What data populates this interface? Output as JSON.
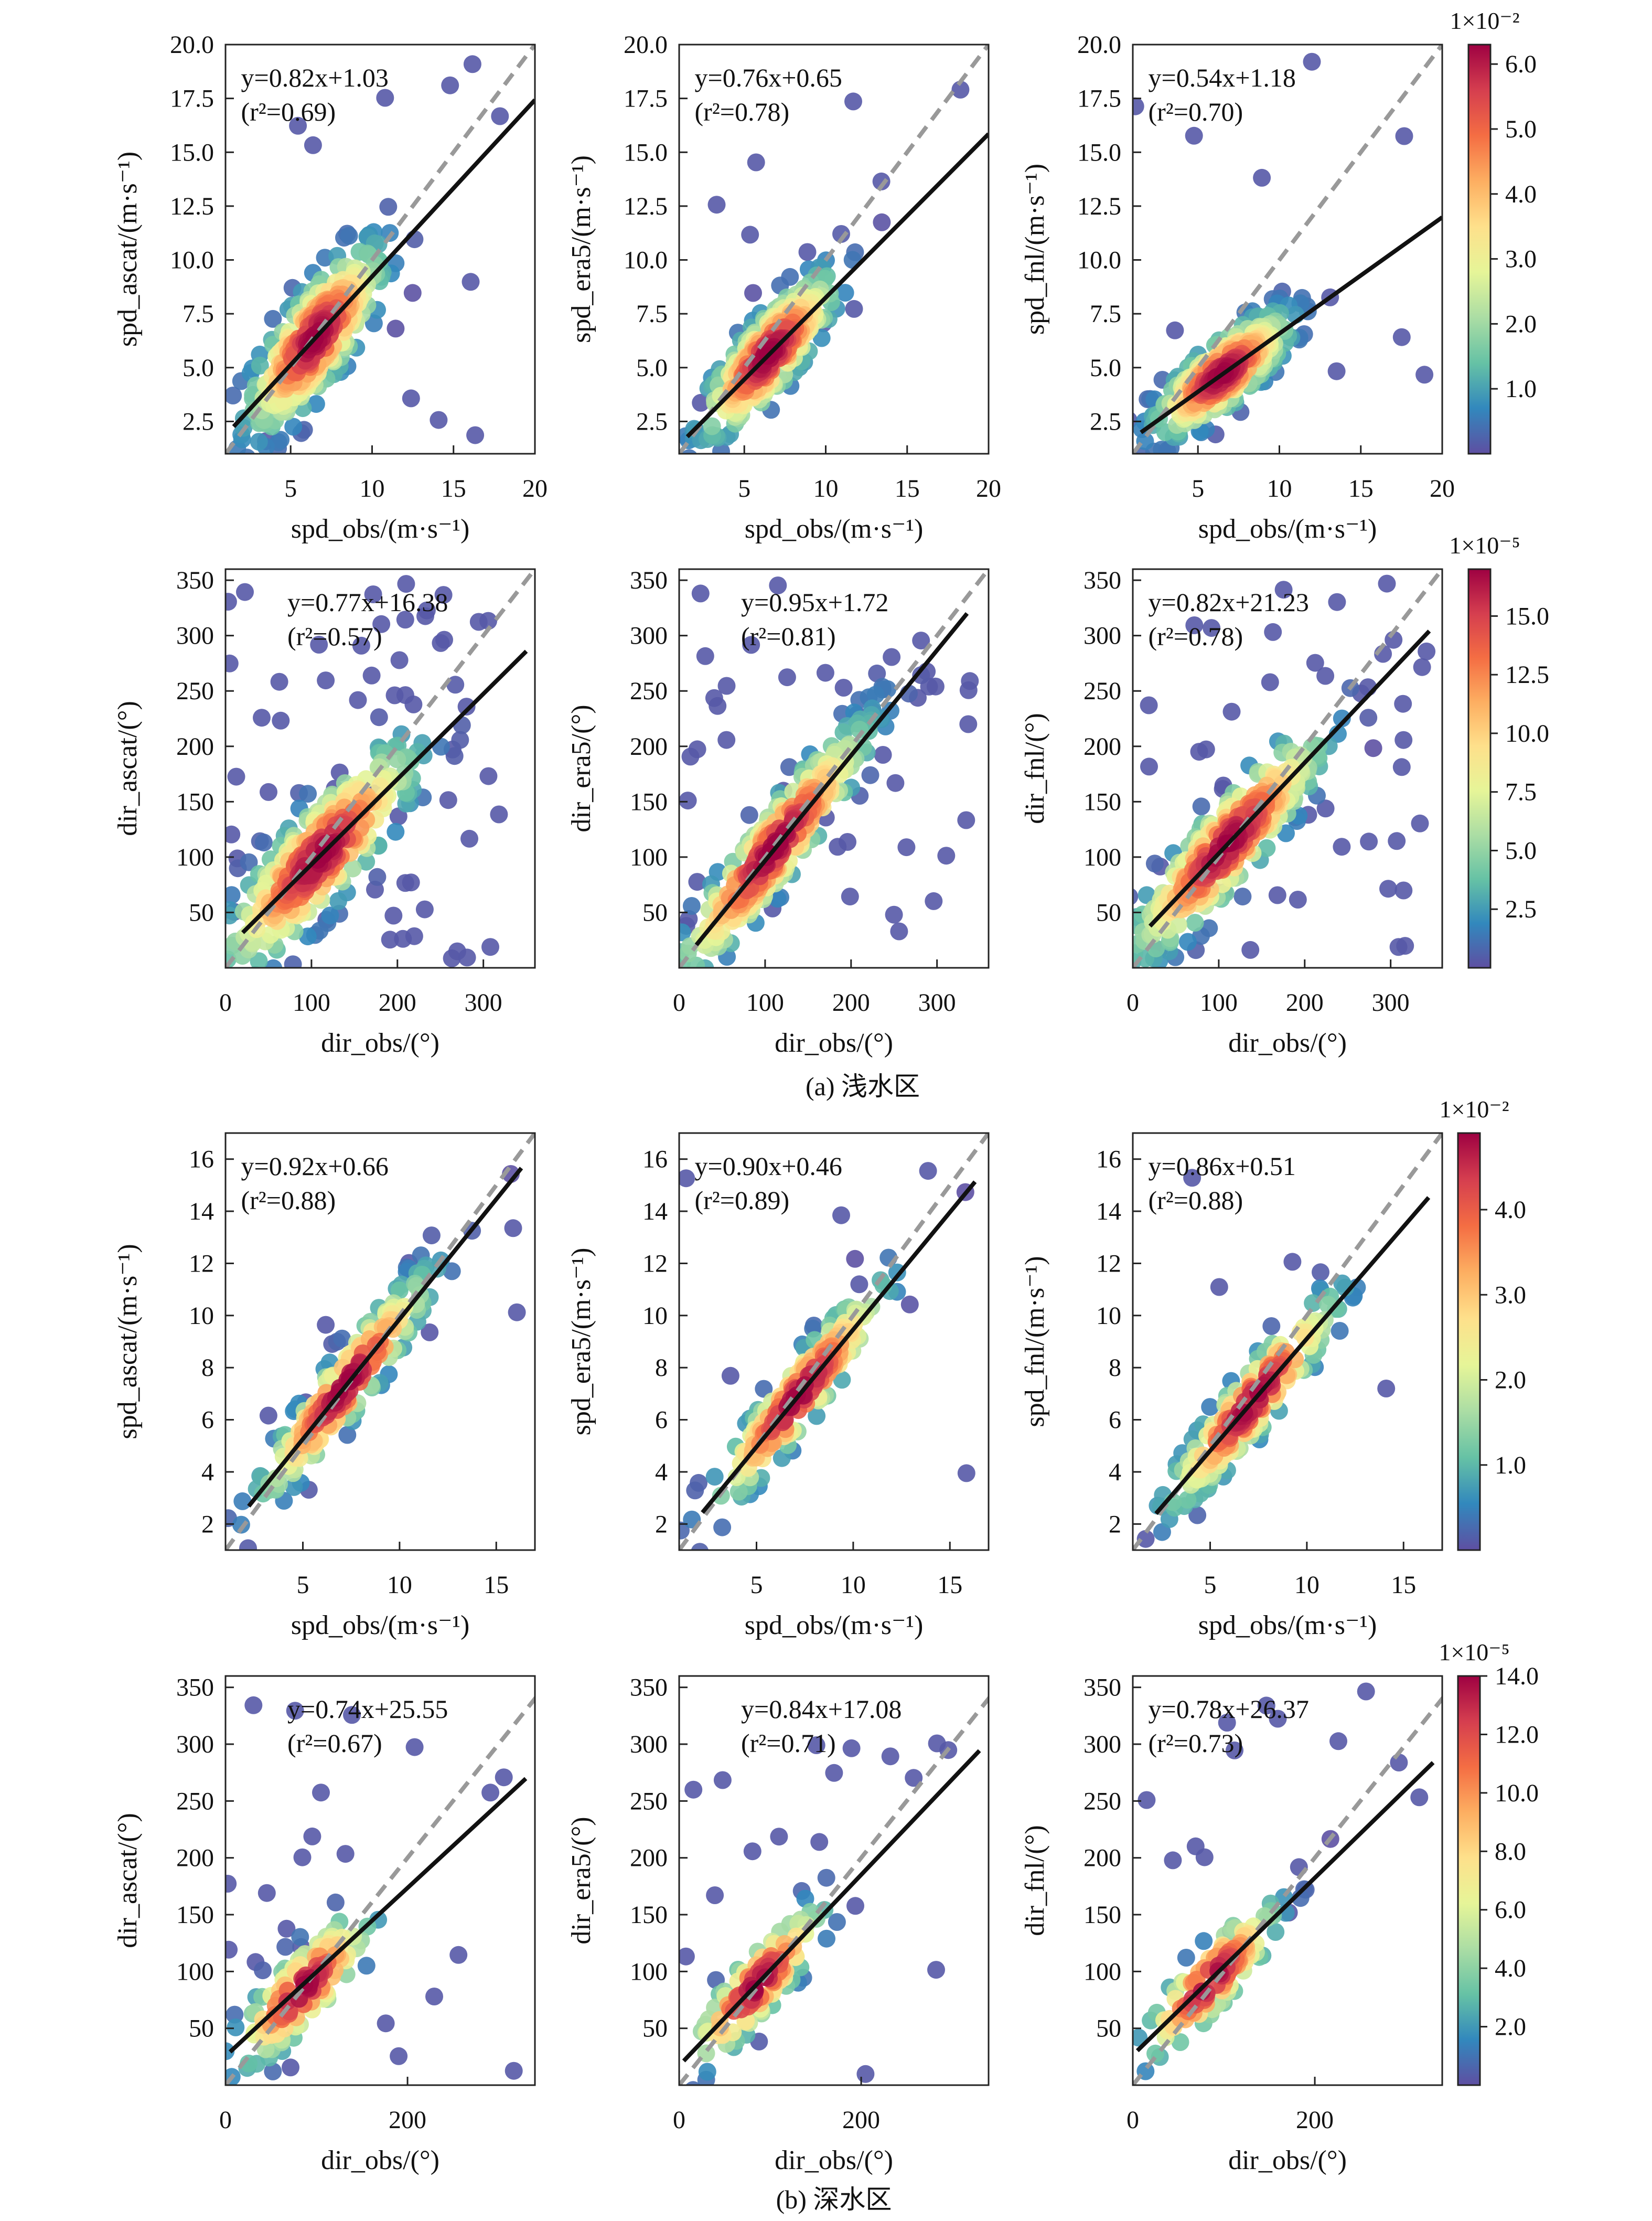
{
  "figure": {
    "section_captions": [
      "(a) 浅水区",
      "(b) 深水区"
    ]
  },
  "colors": {
    "fit_line": "#111111",
    "reference_line": "#999999",
    "colormap": [
      "#5e4fa2",
      "#3288bd",
      "#66c2a5",
      "#abdda4",
      "#e6f598",
      "#fee08b",
      "#fdae61",
      "#f46d43",
      "#d53e4f",
      "#9e0142"
    ]
  },
  "chart_data": [
    {
      "id": "a_spd_ascat",
      "type": "scatter",
      "xlabel": "spd_obs/(m·s⁻¹)",
      "ylabel": "spd_ascat/(m·s⁻¹)",
      "xlim": [
        1,
        20
      ],
      "ylim": [
        1,
        20
      ],
      "xticks": [
        5,
        10,
        15,
        20
      ],
      "yticks": [
        2.5,
        5.0,
        7.5,
        10.0,
        12.5,
        15.0,
        17.5,
        20.0
      ],
      "ytick_decimals": 1,
      "equation": "y=0.82x+1.03",
      "r2": "(r²=0.69)",
      "fit": {
        "slope": 0.82,
        "intercept": 1.03,
        "x": [
          1.5,
          20
        ]
      },
      "cloud": {
        "center": [
          6.5,
          6.3
        ],
        "spread": 2.2,
        "noise": 1.4,
        "n": 320,
        "outliers": 12
      }
    },
    {
      "id": "a_spd_era5",
      "type": "scatter",
      "xlabel": "spd_obs/(m·s⁻¹)",
      "ylabel": "spd_era5/(m·s⁻¹)",
      "xlim": [
        1,
        20
      ],
      "ylim": [
        1,
        20
      ],
      "xticks": [
        5,
        10,
        15,
        20
      ],
      "yticks": [
        2.5,
        5.0,
        7.5,
        10.0,
        12.5,
        15.0,
        17.5,
        20.0
      ],
      "ytick_decimals": 1,
      "equation": "y=0.76x+0.65",
      "r2": "(r²=0.78)",
      "fit": {
        "slope": 0.76,
        "intercept": 0.65,
        "x": [
          1.5,
          20
        ]
      },
      "cloud": {
        "center": [
          6.5,
          5.6
        ],
        "spread": 2.2,
        "noise": 1.1,
        "n": 320,
        "outliers": 10
      }
    },
    {
      "id": "a_spd_fnl",
      "type": "scatter",
      "xlabel": "spd_obs/(m·s⁻¹)",
      "ylabel": "spd_fnl/(m·s⁻¹)",
      "xlim": [
        1,
        20
      ],
      "ylim": [
        1,
        20
      ],
      "xticks": [
        5,
        10,
        15,
        20
      ],
      "yticks": [
        2.5,
        5.0,
        7.5,
        10.0,
        12.5,
        15.0,
        17.5,
        20.0
      ],
      "ytick_decimals": 1,
      "equation": "y=0.54x+1.18",
      "r2": "(r²=0.70)",
      "fit": {
        "slope": 0.54,
        "intercept": 1.18,
        "x": [
          1.5,
          20
        ]
      },
      "cloud": {
        "center": [
          6.5,
          4.7
        ],
        "spread": 2.2,
        "noise": 0.9,
        "n": 320,
        "outliers": 10
      }
    },
    {
      "id": "a_dir_ascat",
      "type": "scatter",
      "xlabel": "dir_obs/(°)",
      "ylabel": "dir_ascat/(°)",
      "xlim": [
        0,
        360
      ],
      "ylim": [
        0,
        360
      ],
      "xticks": [
        0,
        100,
        200,
        300
      ],
      "yticks": [
        50,
        100,
        150,
        200,
        250,
        300,
        350
      ],
      "ytick_decimals": 0,
      "equation": "y=0.77x+16.38",
      "r2": "(r²=0.57)",
      "fit": {
        "slope": 0.77,
        "intercept": 16.38,
        "x": [
          20,
          350
        ]
      },
      "cloud": {
        "center": [
          110,
          100
        ],
        "spread": 60,
        "noise": 28,
        "n": 300,
        "outliers": 60
      }
    },
    {
      "id": "a_dir_era5",
      "type": "scatter",
      "xlabel": "dir_obs/(°)",
      "ylabel": "dir_era5/(°)",
      "xlim": [
        0,
        360
      ],
      "ylim": [
        0,
        360
      ],
      "xticks": [
        0,
        100,
        200,
        300
      ],
      "yticks": [
        50,
        100,
        150,
        200,
        250,
        300,
        350
      ],
      "ytick_decimals": 0,
      "equation": "y=0.95x+1.72",
      "r2": "(r²=0.81)",
      "fit": {
        "slope": 0.95,
        "intercept": 1.72,
        "x": [
          20,
          335
        ]
      },
      "cloud": {
        "center": [
          110,
          110
        ],
        "spread": 60,
        "noise": 22,
        "n": 300,
        "outliers": 40
      }
    },
    {
      "id": "a_dir_fnl",
      "type": "scatter",
      "xlabel": "dir_obs/(°)",
      "ylabel": "dir_fnl/(°)",
      "xlim": [
        0,
        360
      ],
      "ylim": [
        0,
        360
      ],
      "xticks": [
        0,
        100,
        200,
        300
      ],
      "yticks": [
        50,
        100,
        150,
        200,
        250,
        300,
        350
      ],
      "ytick_decimals": 0,
      "equation": "y=0.82x+21.23",
      "r2": "(r²=0.78)",
      "fit": {
        "slope": 0.82,
        "intercept": 21.23,
        "x": [
          20,
          345
        ]
      },
      "cloud": {
        "center": [
          110,
          110
        ],
        "spread": 60,
        "noise": 24,
        "n": 300,
        "outliers": 45
      }
    },
    {
      "id": "b_spd_ascat",
      "type": "scatter",
      "xlabel": "spd_obs/(m·s⁻¹)",
      "ylabel": "spd_ascat/(m·s⁻¹)",
      "xlim": [
        1,
        17
      ],
      "ylim": [
        1,
        17
      ],
      "xticks": [
        5,
        10,
        15
      ],
      "yticks": [
        2,
        4,
        6,
        8,
        10,
        12,
        14,
        16
      ],
      "ytick_decimals": 0,
      "equation": "y=0.92x+0.66",
      "r2": "(r²=0.88)",
      "fit": {
        "slope": 0.92,
        "intercept": 0.66,
        "x": [
          2.2,
          16.3
        ]
      },
      "cloud": {
        "center": [
          7.2,
          7.3
        ],
        "spread": 2.4,
        "noise": 0.8,
        "n": 200,
        "outliers": 6
      }
    },
    {
      "id": "b_spd_era5",
      "type": "scatter",
      "xlabel": "spd_obs/(m·s⁻¹)",
      "ylabel": "spd_era5/(m·s⁻¹)",
      "xlim": [
        1,
        17
      ],
      "ylim": [
        1,
        17
      ],
      "xticks": [
        5,
        10,
        15
      ],
      "yticks": [
        2,
        4,
        6,
        8,
        10,
        12,
        14,
        16
      ],
      "ytick_decimals": 0,
      "equation": "y=0.90x+0.46",
      "r2": "(r²=0.89)",
      "fit": {
        "slope": 0.9,
        "intercept": 0.46,
        "x": [
          2.2,
          16.3
        ]
      },
      "cloud": {
        "center": [
          7.2,
          6.9
        ],
        "spread": 2.4,
        "noise": 0.8,
        "n": 200,
        "outliers": 6
      }
    },
    {
      "id": "b_spd_fnl",
      "type": "scatter",
      "xlabel": "spd_obs/(m·s⁻¹)",
      "ylabel": "spd_fnl/(m·s⁻¹)",
      "xlim": [
        1,
        17
      ],
      "ylim": [
        1,
        17
      ],
      "xticks": [
        5,
        10,
        15
      ],
      "yticks": [
        2,
        4,
        6,
        8,
        10,
        12,
        14,
        16
      ],
      "ytick_decimals": 0,
      "equation": "y=0.86x+0.51",
      "r2": "(r²=0.88)",
      "fit": {
        "slope": 0.86,
        "intercept": 0.51,
        "x": [
          2.2,
          16.3
        ]
      },
      "cloud": {
        "center": [
          7.2,
          6.7
        ],
        "spread": 2.4,
        "noise": 0.8,
        "n": 200,
        "outliers": 6
      }
    },
    {
      "id": "b_dir_ascat",
      "type": "scatter",
      "xlabel": "dir_obs/(°)",
      "ylabel": "dir_ascat/(°)",
      "xlim": [
        0,
        340
      ],
      "ylim": [
        0,
        360
      ],
      "xticks": [
        0,
        200
      ],
      "yticks": [
        50,
        100,
        150,
        200,
        250,
        300,
        350
      ],
      "ytick_decimals": 0,
      "equation": "y=0.74x+25.55",
      "r2": "(r²=0.67)",
      "fit": {
        "slope": 0.74,
        "intercept": 25.55,
        "x": [
          5,
          330
        ]
      },
      "cloud": {
        "center": [
          85,
          75
        ],
        "spread": 40,
        "noise": 20,
        "n": 120,
        "outliers": 22
      }
    },
    {
      "id": "b_dir_era5",
      "type": "scatter",
      "xlabel": "dir_obs/(°)",
      "ylabel": "dir_era5/(°)",
      "xlim": [
        0,
        340
      ],
      "ylim": [
        0,
        360
      ],
      "xticks": [
        0,
        200
      ],
      "yticks": [
        50,
        100,
        150,
        200,
        250,
        300,
        350
      ],
      "ytick_decimals": 0,
      "equation": "y=0.84x+17.08",
      "r2": "(r²=0.71)",
      "fit": {
        "slope": 0.84,
        "intercept": 17.08,
        "x": [
          5,
          330
        ]
      },
      "cloud": {
        "center": [
          85,
          85
        ],
        "spread": 40,
        "noise": 18,
        "n": 120,
        "outliers": 16
      }
    },
    {
      "id": "b_dir_fnl",
      "type": "scatter",
      "xlabel": "dir_obs/(°)",
      "ylabel": "dir_fnl/(°)",
      "xlim": [
        0,
        340
      ],
      "ylim": [
        0,
        360
      ],
      "xticks": [
        0,
        200
      ],
      "yticks": [
        50,
        100,
        150,
        200,
        250,
        300,
        350
      ],
      "ytick_decimals": 0,
      "equation": "y=0.78x+26.37",
      "r2": "(r²=0.73)",
      "fit": {
        "slope": 0.78,
        "intercept": 26.37,
        "x": [
          5,
          330
        ]
      },
      "cloud": {
        "center": [
          85,
          90
        ],
        "spread": 40,
        "noise": 18,
        "n": 120,
        "outliers": 16
      }
    }
  ],
  "colorbars": [
    {
      "id": "cb_a_spd",
      "exponent_label": "1×10⁻²",
      "min": 0,
      "max": 6.3,
      "ticks": [
        1.0,
        2.0,
        3.0,
        4.0,
        5.0,
        6.0
      ],
      "tick_decimals": 1
    },
    {
      "id": "cb_a_dir",
      "exponent_label": "1×10⁻⁵",
      "min": 0,
      "max": 17,
      "ticks": [
        2.5,
        5.0,
        7.5,
        10.0,
        12.5,
        15.0
      ],
      "tick_decimals": 1
    },
    {
      "id": "cb_b_spd",
      "exponent_label": "1×10⁻²",
      "min": 0,
      "max": 4.9,
      "ticks": [
        1.0,
        2.0,
        3.0,
        4.0
      ],
      "tick_decimals": 1
    },
    {
      "id": "cb_b_dir",
      "exponent_label": "1×10⁻⁵",
      "min": 0,
      "max": 14,
      "ticks": [
        2.0,
        4.0,
        6.0,
        8.0,
        10.0,
        12.0,
        14.0
      ],
      "tick_decimals": 1
    }
  ]
}
